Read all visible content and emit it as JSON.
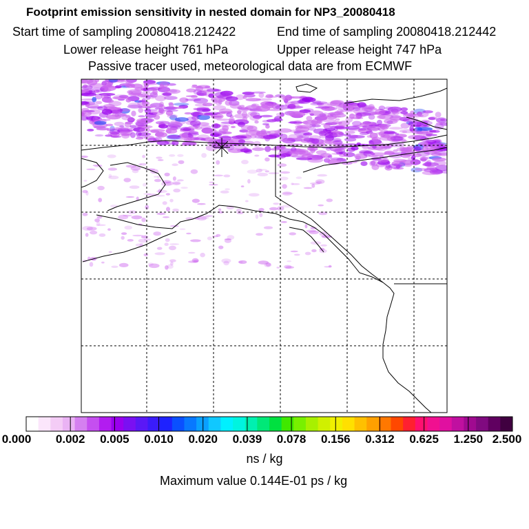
{
  "header": {
    "title": "Footprint emission sensitivity in nested domain for NP3_20080418",
    "start_time": "Start time of sampling 20080418.212422",
    "end_time": "End time of sampling 20080418.212442",
    "lower_height": "Lower release height  761 hPa",
    "upper_height": "Upper release height  747 hPa",
    "note": "Passive tracer used, meteorological data are from ECMWF"
  },
  "colorbar": {
    "ticks": [
      "0.000",
      "0.002",
      "0.005",
      "0.010",
      "0.020",
      "0.039",
      "0.078",
      "0.156",
      "0.312",
      "0.625",
      "1.250",
      "2.500"
    ],
    "colors": [
      "#ffffff",
      "#fbe6fb",
      "#f4ccf6",
      "#eab3f4",
      "#d580f0",
      "#c54ff0",
      "#b21cf0",
      "#9a00ee",
      "#7a10f2",
      "#5a18f6",
      "#3a1cfa",
      "#1e22ff",
      "#0a50ff",
      "#0878ff",
      "#0aa0ff",
      "#10c8ff",
      "#00f0ff",
      "#00f4e0",
      "#00f0b0",
      "#00e878",
      "#00e040",
      "#40e800",
      "#78f000",
      "#a8f000",
      "#d0f000",
      "#f0f000",
      "#ffe000",
      "#ffc000",
      "#ffa000",
      "#ff7800",
      "#ff4800",
      "#ff2030",
      "#ff1070",
      "#f01090",
      "#e010a0",
      "#c010a0",
      "#a00a90",
      "#800a80",
      "#600060",
      "#400040"
    ],
    "unit": "ns / kg"
  },
  "footer": {
    "max_value": "Maximum value  0.144E-01 ps / kg"
  },
  "map": {
    "release_point_symbol": "star-marker",
    "field_colors": [
      "#cc66ee",
      "#b030f0",
      "#9a00ee",
      "#2a4af8"
    ],
    "coast_color": "#000000"
  }
}
